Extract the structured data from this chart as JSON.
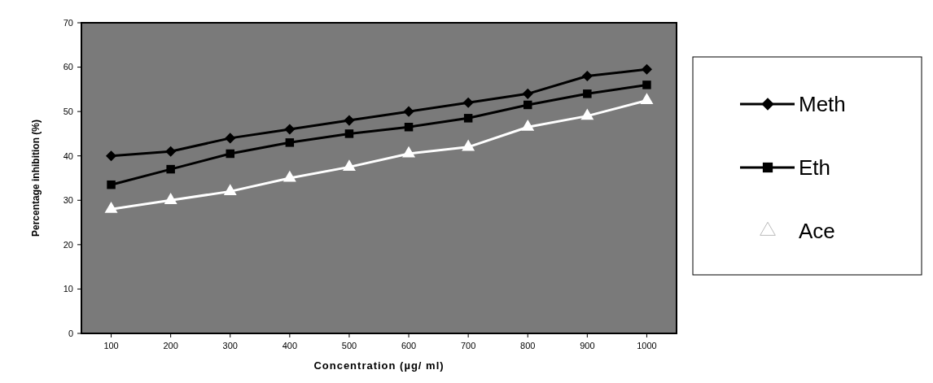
{
  "chart_data": {
    "type": "line",
    "xlabel": "Concentration (µg/ ml)",
    "ylabel": "Percentage inhibition (%)",
    "categories": [
      "100",
      "200",
      "300",
      "400",
      "500",
      "600",
      "700",
      "800",
      "900",
      "1000"
    ],
    "ylim": [
      0,
      70
    ],
    "yticks": [
      0,
      10,
      20,
      30,
      40,
      50,
      60,
      70
    ],
    "grid": false,
    "legend": "right",
    "line_style": "solid",
    "series": [
      {
        "name": "Meth",
        "color": "#000000",
        "marker": "diamond",
        "values": [
          40,
          41,
          44,
          46,
          48,
          50,
          52,
          54,
          58,
          59.5
        ]
      },
      {
        "name": "Eth",
        "color": "#000000",
        "marker": "square",
        "values": [
          33.5,
          37,
          40.5,
          43,
          45,
          46.5,
          48.5,
          51.5,
          54,
          56
        ]
      },
      {
        "name": "Ace",
        "color": "#ffffff",
        "marker": "triangle",
        "values": [
          28,
          30,
          32,
          35,
          37.5,
          40.5,
          42,
          46.5,
          49,
          52.5
        ]
      }
    ]
  }
}
